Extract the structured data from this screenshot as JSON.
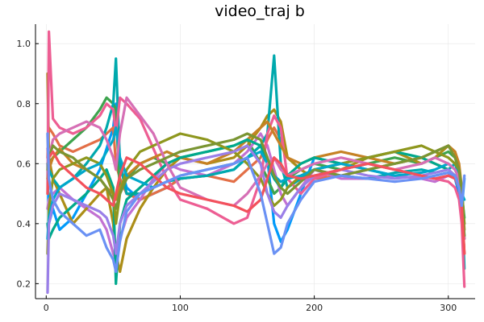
{
  "chart_data": {
    "type": "line",
    "title": "video_traj b",
    "xlabel": "",
    "ylabel": "",
    "xlim": [
      -8,
      320
    ],
    "ylim": [
      0.15,
      1.065
    ],
    "xticks": [
      0,
      100,
      200,
      300
    ],
    "xtick_labels": [
      "0",
      "100",
      "200",
      "300"
    ],
    "yticks": [
      0.2,
      0.4,
      0.6,
      0.8,
      1.0
    ],
    "ytick_labels": [
      "0.2",
      "0.4",
      "0.6",
      "0.8",
      "1.0"
    ],
    "grid": true,
    "legend": "none",
    "x": [
      1,
      2,
      5,
      10,
      20,
      30,
      40,
      45,
      50,
      52,
      55,
      60,
      70,
      80,
      90,
      100,
      120,
      140,
      150,
      160,
      165,
      170,
      175,
      180,
      190,
      200,
      220,
      240,
      260,
      280,
      290,
      300,
      305,
      308,
      310,
      312
    ],
    "series": [
      {
        "color": "#009AFA",
        "values": [
          0.6,
          0.4,
          0.45,
          0.38,
          0.42,
          0.5,
          0.58,
          0.65,
          0.72,
          0.8,
          0.6,
          0.52,
          0.48,
          0.5,
          0.52,
          0.55,
          0.56,
          0.58,
          0.62,
          0.66,
          0.62,
          0.4,
          0.34,
          0.38,
          0.5,
          0.62,
          0.6,
          0.58,
          0.56,
          0.55,
          0.56,
          0.57,
          0.55,
          0.5,
          0.45,
          0.55
        ]
      },
      {
        "color": "#E36F47",
        "values": [
          0.62,
          0.72,
          0.7,
          0.66,
          0.64,
          0.66,
          0.68,
          0.7,
          0.72,
          0.6,
          0.55,
          0.5,
          0.48,
          0.5,
          0.52,
          0.55,
          0.56,
          0.54,
          0.58,
          0.62,
          0.68,
          0.72,
          0.68,
          0.62,
          0.58,
          0.55,
          0.56,
          0.58,
          0.6,
          0.62,
          0.6,
          0.58,
          0.56,
          0.52,
          0.45,
          0.4
        ]
      },
      {
        "color": "#3EA44E",
        "values": [
          0.55,
          0.6,
          0.62,
          0.64,
          0.68,
          0.72,
          0.78,
          0.82,
          0.8,
          0.78,
          0.5,
          0.55,
          0.6,
          0.62,
          0.6,
          0.62,
          0.64,
          0.66,
          0.68,
          0.6,
          0.55,
          0.5,
          0.52,
          0.55,
          0.58,
          0.6,
          0.58,
          0.6,
          0.62,
          0.6,
          0.62,
          0.64,
          0.62,
          0.58,
          0.5,
          0.35
        ]
      },
      {
        "color": "#C271D2",
        "values": [
          0.45,
          0.48,
          0.5,
          0.52,
          0.48,
          0.45,
          0.42,
          0.38,
          0.3,
          0.28,
          0.35,
          0.42,
          0.48,
          0.55,
          0.6,
          0.58,
          0.56,
          0.6,
          0.64,
          0.7,
          0.66,
          0.58,
          0.5,
          0.46,
          0.52,
          0.58,
          0.55,
          0.55,
          0.56,
          0.55,
          0.54,
          0.56,
          0.55,
          0.52,
          0.45,
          0.3
        ]
      },
      {
        "color": "#AC8E18",
        "values": [
          0.9,
          0.62,
          0.55,
          0.5,
          0.4,
          0.45,
          0.5,
          0.52,
          0.4,
          0.3,
          0.24,
          0.35,
          0.45,
          0.52,
          0.58,
          0.62,
          0.6,
          0.62,
          0.66,
          0.72,
          0.76,
          0.78,
          0.74,
          0.62,
          0.58,
          0.55,
          0.58,
          0.62,
          0.64,
          0.6,
          0.62,
          0.66,
          0.64,
          0.58,
          0.48,
          0.3
        ]
      },
      {
        "color": "#00A9AD",
        "values": [
          0.6,
          0.58,
          0.55,
          0.52,
          0.55,
          0.6,
          0.66,
          0.72,
          0.8,
          0.95,
          0.6,
          0.5,
          0.5,
          0.52,
          0.54,
          0.55,
          0.56,
          0.58,
          0.62,
          0.66,
          0.7,
          0.96,
          0.6,
          0.52,
          0.55,
          0.58,
          0.56,
          0.55,
          0.57,
          0.58,
          0.57,
          0.58,
          0.6,
          0.56,
          0.5,
          0.25
        ]
      },
      {
        "color": "#ED5E93",
        "values": [
          0.5,
          1.04,
          0.75,
          0.72,
          0.7,
          0.72,
          0.76,
          0.8,
          0.78,
          0.7,
          0.82,
          0.8,
          0.75,
          0.65,
          0.55,
          0.48,
          0.45,
          0.4,
          0.42,
          0.55,
          0.7,
          0.76,
          0.72,
          0.55,
          0.5,
          0.55,
          0.58,
          0.6,
          0.58,
          0.56,
          0.55,
          0.54,
          0.52,
          0.48,
          0.4,
          0.19
        ]
      },
      {
        "color": "#C68225",
        "values": [
          0.55,
          0.58,
          0.62,
          0.65,
          0.6,
          0.58,
          0.55,
          0.52,
          0.5,
          0.48,
          0.52,
          0.56,
          0.6,
          0.62,
          0.64,
          0.62,
          0.6,
          0.64,
          0.68,
          0.72,
          0.74,
          0.7,
          0.66,
          0.62,
          0.6,
          0.62,
          0.64,
          0.62,
          0.6,
          0.62,
          0.64,
          0.66,
          0.64,
          0.6,
          0.52,
          0.38
        ]
      },
      {
        "color": "#00A98D",
        "values": [
          0.4,
          0.35,
          0.38,
          0.42,
          0.46,
          0.5,
          0.55,
          0.58,
          0.52,
          0.2,
          0.4,
          0.48,
          0.52,
          0.56,
          0.6,
          0.62,
          0.64,
          0.66,
          0.68,
          0.66,
          0.6,
          0.55,
          0.52,
          0.56,
          0.6,
          0.62,
          0.6,
          0.62,
          0.64,
          0.62,
          0.6,
          0.58,
          0.56,
          0.54,
          0.5,
          0.42
        ]
      },
      {
        "color": "#8E971E",
        "values": [
          0.3,
          0.45,
          0.55,
          0.58,
          0.6,
          0.62,
          0.6,
          0.56,
          0.5,
          0.4,
          0.5,
          0.58,
          0.64,
          0.66,
          0.68,
          0.7,
          0.68,
          0.64,
          0.6,
          0.55,
          0.5,
          0.46,
          0.48,
          0.52,
          0.56,
          0.58,
          0.6,
          0.62,
          0.64,
          0.66,
          0.64,
          0.62,
          0.6,
          0.58,
          0.52,
          0.4
        ]
      },
      {
        "color": "#00A8CB",
        "values": [
          0.35,
          0.42,
          0.48,
          0.52,
          0.55,
          0.58,
          0.6,
          0.64,
          0.68,
          0.72,
          0.62,
          0.56,
          0.54,
          0.52,
          0.54,
          0.56,
          0.58,
          0.6,
          0.62,
          0.64,
          0.6,
          0.56,
          0.54,
          0.55,
          0.56,
          0.58,
          0.6,
          0.58,
          0.56,
          0.57,
          0.58,
          0.6,
          0.58,
          0.55,
          0.5,
          0.48
        ]
      },
      {
        "color": "#9A7FE8",
        "values": [
          0.17,
          0.4,
          0.46,
          0.5,
          0.48,
          0.46,
          0.44,
          0.42,
          0.36,
          0.3,
          0.4,
          0.46,
          0.5,
          0.54,
          0.58,
          0.6,
          0.62,
          0.64,
          0.66,
          0.6,
          0.5,
          0.44,
          0.42,
          0.46,
          0.52,
          0.56,
          0.58,
          0.56,
          0.55,
          0.56,
          0.57,
          0.58,
          0.56,
          0.52,
          0.46,
          0.36
        ]
      },
      {
        "color": "#D66FB5",
        "values": [
          0.65,
          0.62,
          0.68,
          0.7,
          0.72,
          0.74,
          0.72,
          0.68,
          0.62,
          0.58,
          0.7,
          0.82,
          0.76,
          0.7,
          0.6,
          0.52,
          0.48,
          0.46,
          0.5,
          0.56,
          0.6,
          0.62,
          0.58,
          0.56,
          0.58,
          0.6,
          0.62,
          0.6,
          0.58,
          0.6,
          0.62,
          0.6,
          0.58,
          0.55,
          0.48,
          0.35
        ]
      },
      {
        "color": "#7A9533",
        "values": [
          0.58,
          0.62,
          0.66,
          0.64,
          0.62,
          0.58,
          0.55,
          0.52,
          0.48,
          0.45,
          0.5,
          0.55,
          0.58,
          0.6,
          0.62,
          0.64,
          0.66,
          0.68,
          0.7,
          0.68,
          0.62,
          0.56,
          0.52,
          0.5,
          0.54,
          0.58,
          0.56,
          0.58,
          0.6,
          0.62,
          0.64,
          0.66,
          0.62,
          0.58,
          0.5,
          0.36
        ]
      },
      {
        "color": "#F3515C",
        "values": [
          0.5,
          0.62,
          0.64,
          0.6,
          0.56,
          0.52,
          0.5,
          0.48,
          0.46,
          0.5,
          0.56,
          0.62,
          0.6,
          0.56,
          0.52,
          0.5,
          0.48,
          0.46,
          0.44,
          0.48,
          0.55,
          0.62,
          0.6,
          0.56,
          0.55,
          0.56,
          0.58,
          0.6,
          0.58,
          0.56,
          0.55,
          0.56,
          0.55,
          0.52,
          0.46,
          0.3
        ]
      },
      {
        "color": "#6A91F4",
        "values": [
          0.7,
          0.55,
          0.48,
          0.44,
          0.4,
          0.36,
          0.38,
          0.32,
          0.28,
          0.24,
          0.34,
          0.44,
          0.5,
          0.52,
          0.54,
          0.56,
          0.58,
          0.6,
          0.62,
          0.5,
          0.4,
          0.3,
          0.32,
          0.4,
          0.48,
          0.54,
          0.56,
          0.55,
          0.54,
          0.55,
          0.56,
          0.57,
          0.56,
          0.52,
          0.46,
          0.56
        ]
      }
    ]
  }
}
